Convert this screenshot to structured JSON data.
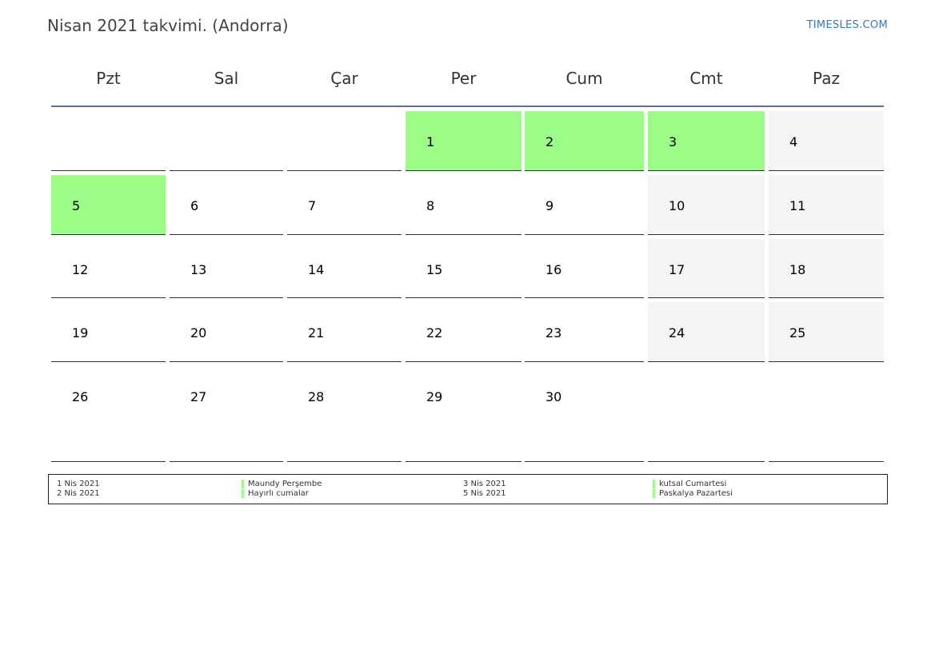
{
  "header": {
    "title": "Nisan 2021 takvimi. (Andorra)",
    "brand": "TIMESLES.COM"
  },
  "colors": {
    "holiday": "#9bfc88",
    "weekend": "#f4f4f4",
    "header_rule": "#5a7396",
    "brand": "#3a78b4"
  },
  "weekdays": [
    "Pzt",
    "Sal",
    "Çar",
    "Per",
    "Cum",
    "Cmt",
    "Paz"
  ],
  "weeks": [
    [
      {
        "day": "",
        "type": "empty"
      },
      {
        "day": "",
        "type": "empty"
      },
      {
        "day": "",
        "type": "empty"
      },
      {
        "day": "1",
        "type": "holiday"
      },
      {
        "day": "2",
        "type": "holiday"
      },
      {
        "day": "3",
        "type": "holiday"
      },
      {
        "day": "4",
        "type": "weekend"
      }
    ],
    [
      {
        "day": "5",
        "type": "holiday"
      },
      {
        "day": "6",
        "type": "normal"
      },
      {
        "day": "7",
        "type": "normal"
      },
      {
        "day": "8",
        "type": "normal"
      },
      {
        "day": "9",
        "type": "normal"
      },
      {
        "day": "10",
        "type": "weekend"
      },
      {
        "day": "11",
        "type": "weekend"
      }
    ],
    [
      {
        "day": "12",
        "type": "normal"
      },
      {
        "day": "13",
        "type": "normal"
      },
      {
        "day": "14",
        "type": "normal"
      },
      {
        "day": "15",
        "type": "normal"
      },
      {
        "day": "16",
        "type": "normal"
      },
      {
        "day": "17",
        "type": "weekend"
      },
      {
        "day": "18",
        "type": "weekend"
      }
    ],
    [
      {
        "day": "19",
        "type": "normal"
      },
      {
        "day": "20",
        "type": "normal"
      },
      {
        "day": "21",
        "type": "normal"
      },
      {
        "day": "22",
        "type": "normal"
      },
      {
        "day": "23",
        "type": "normal"
      },
      {
        "day": "24",
        "type": "weekend"
      },
      {
        "day": "25",
        "type": "weekend"
      }
    ],
    [
      {
        "day": "26",
        "type": "normal"
      },
      {
        "day": "27",
        "type": "normal"
      },
      {
        "day": "28",
        "type": "normal"
      },
      {
        "day": "29",
        "type": "normal"
      },
      {
        "day": "30",
        "type": "normal"
      },
      {
        "day": "",
        "type": "empty"
      },
      {
        "day": "",
        "type": "empty"
      }
    ]
  ],
  "legend": {
    "col1_dates": [
      "1 Nis 2021",
      "2 Nis 2021"
    ],
    "col1_names": [
      "Maundy Perşembe",
      "Hayırlı cumalar"
    ],
    "col2_dates": [
      "3 Nis 2021",
      "5 Nis 2021"
    ],
    "col2_names": [
      "kutsal Cumartesi",
      "Paskalya Pazartesi"
    ]
  }
}
